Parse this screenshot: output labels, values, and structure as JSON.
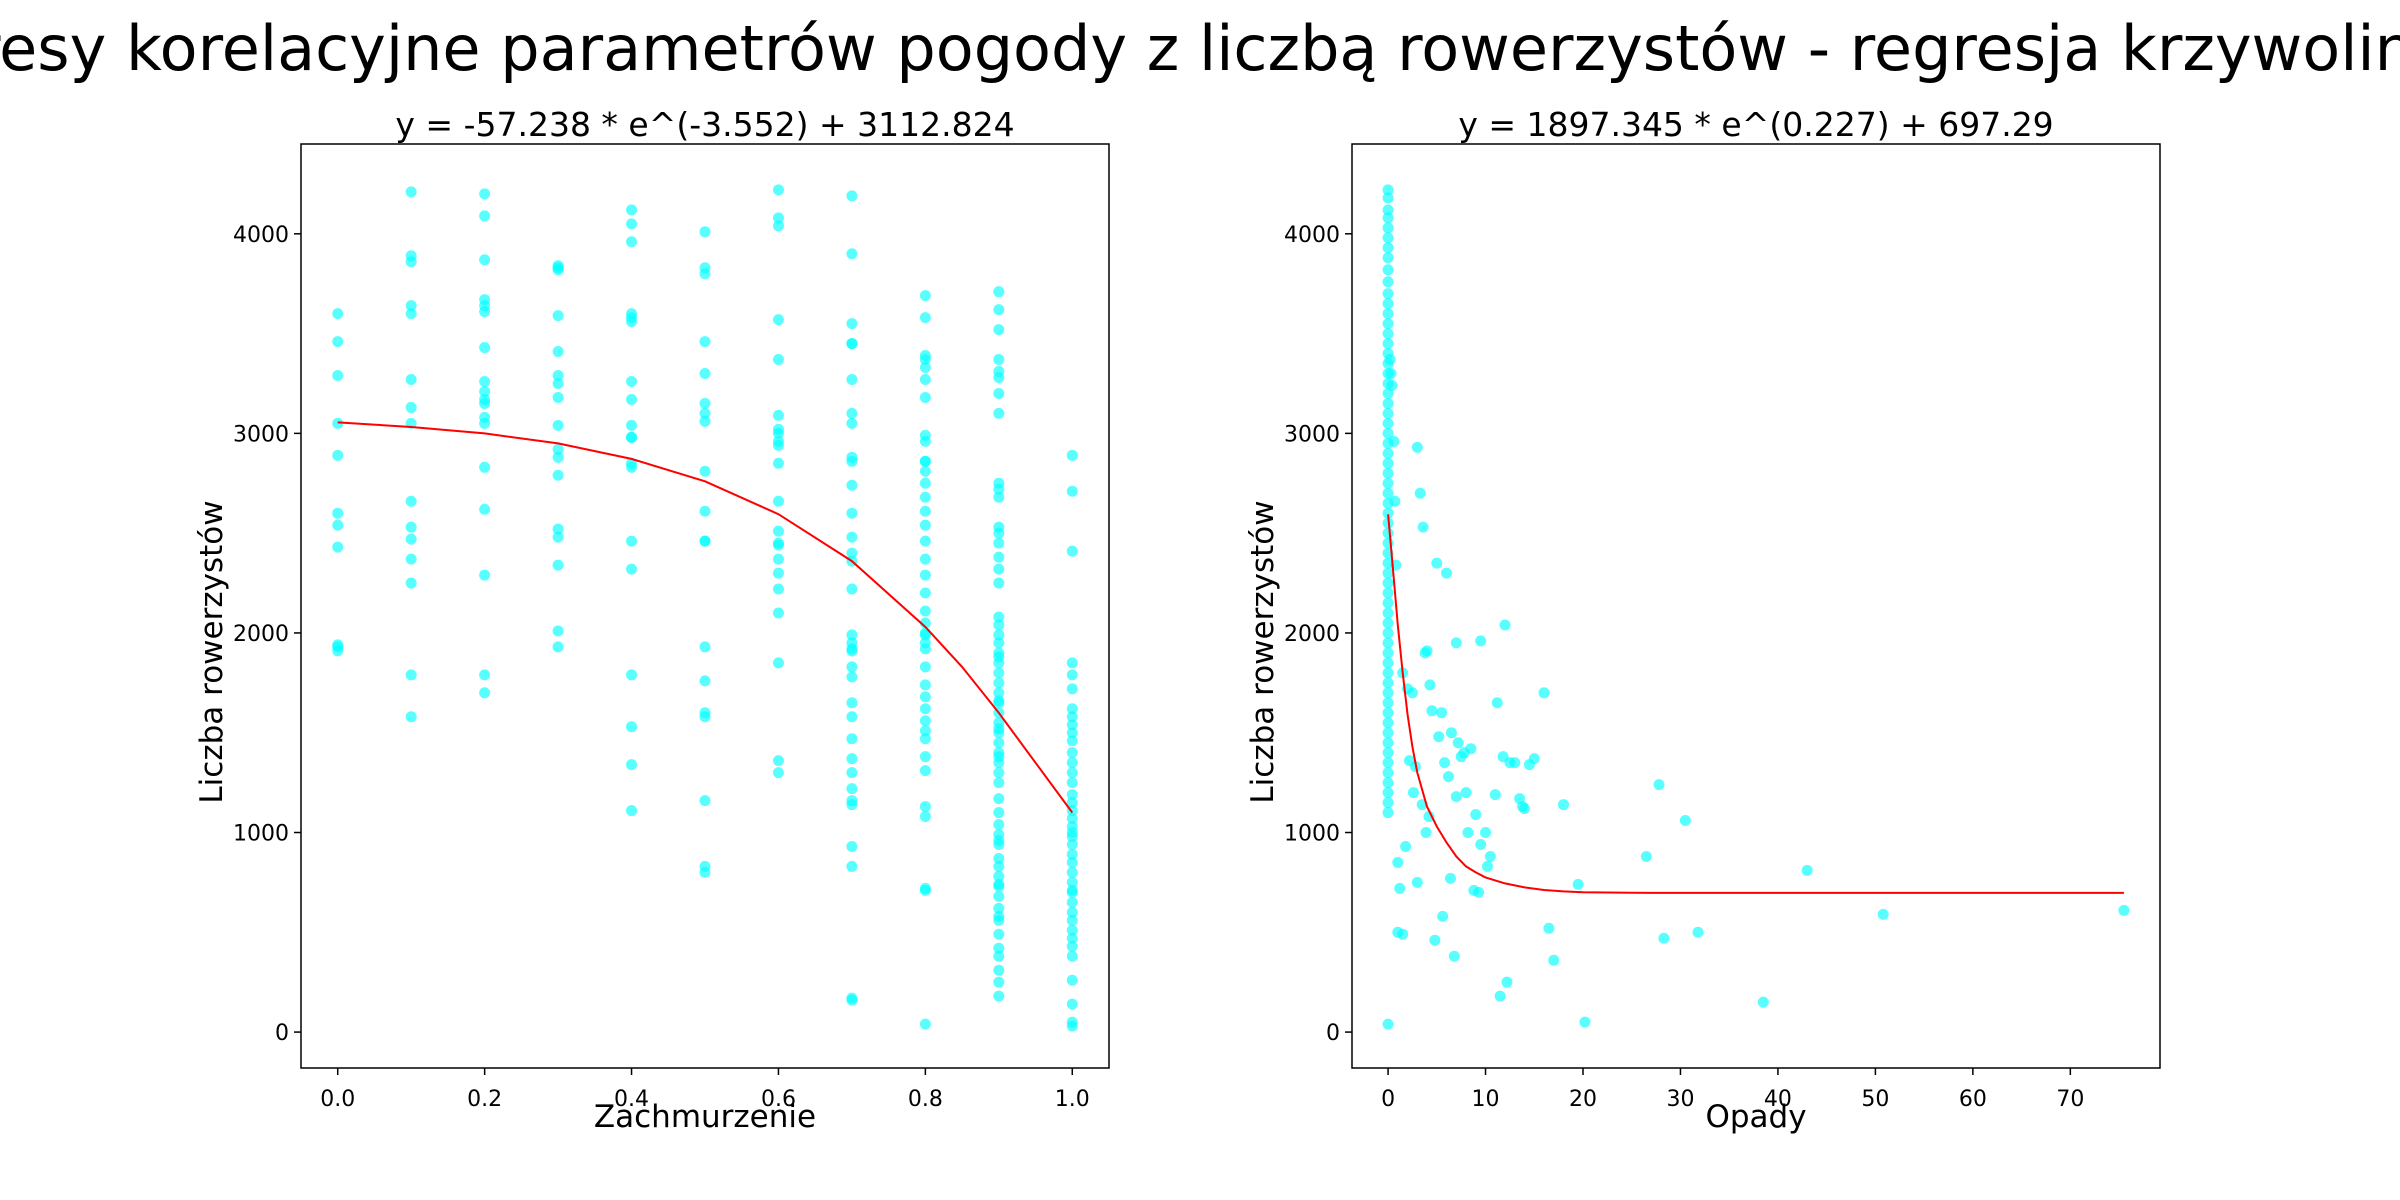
{
  "figure": {
    "suptitle": "Wykresy korelacyjne parametrów pogody z liczbą rowerzystów - regresja krzywoliniowa"
  },
  "colors": {
    "points": "#00ffff",
    "curve": "#ff0000",
    "axes": "#000000"
  },
  "chart_data": [
    {
      "type": "scatter",
      "title": "y = -57.238 * e^(-3.552) + 3112.824",
      "xlabel": "Zachmurzenie",
      "ylabel": "Liczba rowerzystów",
      "xlim": [
        -0.05,
        1.05
      ],
      "ylim": [
        -180,
        4450
      ],
      "xticks": [
        0.0,
        0.2,
        0.4,
        0.6,
        0.8,
        1.0
      ],
      "xtick_labels": [
        "0.0",
        "0.2",
        "0.4",
        "0.6",
        "0.8",
        "1.0"
      ],
      "yticks": [
        0,
        1000,
        2000,
        3000,
        4000
      ],
      "ytick_labels": [
        "0",
        "1000",
        "2000",
        "3000",
        "4000"
      ],
      "series": [
        {
          "kind": "points",
          "x": [
            0.0,
            0.0,
            0.0,
            0.0,
            0.0,
            0.0,
            0.0,
            0.0,
            0.0,
            0.0,
            0.0,
            0.1,
            0.1,
            0.1,
            0.1,
            0.1,
            0.1,
            0.1,
            0.1,
            0.1,
            0.1,
            0.1,
            0.1,
            0.1,
            0.1,
            0.1,
            0.2,
            0.2,
            0.2,
            0.2,
            0.2,
            0.2,
            0.2,
            0.2,
            0.2,
            0.2,
            0.2,
            0.2,
            0.2,
            0.2,
            0.2,
            0.2,
            0.2,
            0.2,
            0.3,
            0.3,
            0.3,
            0.3,
            0.3,
            0.3,
            0.3,
            0.3,
            0.3,
            0.3,
            0.3,
            0.3,
            0.3,
            0.3,
            0.3,
            0.3,
            0.3,
            0.4,
            0.4,
            0.4,
            0.4,
            0.4,
            0.4,
            0.4,
            0.4,
            0.4,
            0.4,
            0.4,
            0.4,
            0.4,
            0.4,
            0.4,
            0.4,
            0.4,
            0.4,
            0.4,
            0.5,
            0.5,
            0.5,
            0.5,
            0.5,
            0.5,
            0.5,
            0.5,
            0.5,
            0.5,
            0.5,
            0.5,
            0.5,
            0.5,
            0.5,
            0.5,
            0.5,
            0.5,
            0.5,
            0.6,
            0.6,
            0.6,
            0.6,
            0.6,
            0.6,
            0.6,
            0.6,
            0.6,
            0.6,
            0.6,
            0.6,
            0.6,
            0.6,
            0.6,
            0.6,
            0.6,
            0.6,
            0.6,
            0.6,
            0.6,
            0.6,
            0.7,
            0.7,
            0.7,
            0.7,
            0.7,
            0.7,
            0.7,
            0.7,
            0.7,
            0.7,
            0.7,
            0.7,
            0.7,
            0.7,
            0.7,
            0.7,
            0.7,
            0.7,
            0.7,
            0.7,
            0.7,
            0.7,
            0.7,
            0.7,
            0.7,
            0.7,
            0.7,
            0.7,
            0.7,
            0.7,
            0.7,
            0.7,
            0.7,
            0.7,
            0.8,
            0.8,
            0.8,
            0.8,
            0.8,
            0.8,
            0.8,
            0.8,
            0.8,
            0.8,
            0.8,
            0.8,
            0.8,
            0.8,
            0.8,
            0.8,
            0.8,
            0.8,
            0.8,
            0.8,
            0.8,
            0.8,
            0.8,
            0.8,
            0.8,
            0.8,
            0.8,
            0.8,
            0.8,
            0.8,
            0.8,
            0.8,
            0.8,
            0.8,
            0.8,
            0.8,
            0.8,
            0.8,
            0.8,
            0.8,
            0.9,
            0.9,
            0.9,
            0.9,
            0.9,
            0.9,
            0.9,
            0.9,
            0.9,
            0.9,
            0.9,
            0.9,
            0.9,
            0.9,
            0.9,
            0.9,
            0.9,
            0.9,
            0.9,
            0.9,
            0.9,
            0.9,
            0.9,
            0.9,
            0.9,
            0.9,
            0.9,
            0.9,
            0.9,
            0.9,
            0.9,
            0.9,
            0.9,
            0.9,
            0.9,
            0.9,
            0.9,
            0.9,
            0.9,
            0.9,
            0.9,
            0.9,
            0.9,
            0.9,
            0.9,
            0.9,
            0.9,
            0.9,
            0.9,
            0.9,
            0.9,
            0.9,
            0.9,
            0.9,
            0.9,
            0.9,
            0.9,
            0.9,
            0.9,
            0.9,
            1.0,
            1.0,
            1.0,
            1.0,
            1.0,
            1.0,
            1.0,
            1.0,
            1.0,
            1.0,
            1.0,
            1.0,
            1.0,
            1.0,
            1.0,
            1.0,
            1.0,
            1.0,
            1.0,
            1.0,
            1.0,
            1.0,
            1.0,
            1.0,
            1.0,
            1.0,
            1.0,
            1.0,
            1.0,
            1.0,
            1.0,
            1.0,
            1.0,
            1.0,
            1.0,
            1.0,
            1.0,
            1.0,
            1.0,
            1.0
          ],
          "y": [
            3600,
            3460,
            3290,
            3050,
            2890,
            2600,
            2540,
            2430,
            1940,
            1930,
            1910,
            4210,
            3890,
            3860,
            3640,
            3600,
            3270,
            3130,
            3050,
            2660,
            2530,
            2470,
            2370,
            2250,
            1790,
            1580,
            4200,
            4090,
            3870,
            3670,
            3640,
            3610,
            3430,
            3260,
            3210,
            3170,
            3150,
            3080,
            2830,
            2620,
            2290,
            1790,
            1700,
            3050,
            3840,
            3820,
            3590,
            3410,
            3290,
            3250,
            3180,
            3040,
            2920,
            2790,
            2520,
            2480,
            2340,
            2010,
            1930,
            3830,
            2880,
            4120,
            4050,
            3960,
            3600,
            3580,
            3560,
            3260,
            3170,
            3040,
            2980,
            2850,
            2830,
            2460,
            2320,
            1790,
            1530,
            1340,
            1110,
            2980,
            4010,
            3830,
            3800,
            3460,
            3300,
            3150,
            3100,
            3060,
            2810,
            2610,
            2460,
            1930,
            1760,
            1600,
            1580,
            1160,
            830,
            800,
            2460,
            4220,
            4080,
            4040,
            3570,
            3370,
            3090,
            3020,
            2940,
            2850,
            2660,
            2510,
            2440,
            2370,
            2300,
            2220,
            2100,
            1850,
            1360,
            1300,
            3000,
            2450,
            2960,
            4190,
            3900,
            3550,
            3450,
            3450,
            3270,
            3100,
            3050,
            2880,
            2860,
            2740,
            2600,
            2480,
            2400,
            2360,
            2220,
            1990,
            1950,
            1920,
            1830,
            1780,
            1650,
            1580,
            1470,
            1370,
            1300,
            1220,
            1160,
            1140,
            930,
            830,
            170,
            160,
            1910,
            3690,
            3580,
            3390,
            3370,
            3330,
            3270,
            3180,
            2990,
            2960,
            2860,
            2810,
            2750,
            2680,
            2610,
            2540,
            2460,
            2370,
            2290,
            2200,
            2110,
            2050,
            1990,
            1920,
            1830,
            1740,
            1680,
            1620,
            1560,
            1510,
            1470,
            1380,
            1310,
            1130,
            1080,
            720,
            710,
            40,
            2860,
            2000,
            1950,
            3710,
            3620,
            3520,
            3370,
            3310,
            3280,
            3200,
            3100,
            2750,
            2720,
            2680,
            2530,
            2500,
            2450,
            2380,
            2320,
            2250,
            2080,
            2040,
            1990,
            1950,
            1900,
            1850,
            1800,
            1750,
            1700,
            1650,
            1600,
            1550,
            1500,
            1450,
            1400,
            1350,
            1300,
            1250,
            1170,
            1100,
            1040,
            990,
            940,
            870,
            830,
            780,
            730,
            680,
            620,
            580,
            490,
            420,
            380,
            310,
            250,
            180,
            1880,
            1660,
            1520,
            1380,
            960,
            740,
            560,
            2890,
            2710,
            2410,
            1850,
            1790,
            1720,
            1620,
            1580,
            1540,
            1460,
            1400,
            1350,
            1300,
            1250,
            1190,
            1150,
            1110,
            1070,
            1030,
            980,
            940,
            890,
            850,
            800,
            750,
            710,
            650,
            600,
            560,
            510,
            470,
            430,
            380,
            260,
            140,
            50,
            30,
            1500,
            1000,
            700
          ]
        },
        {
          "kind": "curve",
          "x": [
            0.0,
            0.1,
            0.2,
            0.3,
            0.4,
            0.5,
            0.6,
            0.7,
            0.8,
            0.85,
            0.9,
            0.95,
            1.0
          ],
          "y": [
            3055,
            3032,
            3000,
            2950,
            2872,
            2760,
            2595,
            2360,
            2030,
            1830,
            1600,
            1350,
            1100
          ]
        }
      ]
    },
    {
      "type": "scatter",
      "title": "y = 1897.345 * e^(0.227) + 697.29",
      "xlabel": "Opady",
      "ylabel": "Liczba rowerzystów",
      "xlim": [
        -3.7,
        79.2
      ],
      "ylim": [
        -180,
        4450
      ],
      "xticks": [
        0,
        10,
        20,
        30,
        40,
        50,
        60,
        70
      ],
      "xtick_labels": [
        "0",
        "10",
        "20",
        "30",
        "40",
        "50",
        "60",
        "70"
      ],
      "yticks": [
        0,
        1000,
        2000,
        3000,
        4000
      ],
      "ytick_labels": [
        "0",
        "1000",
        "2000",
        "3000",
        "4000"
      ],
      "series": [
        {
          "kind": "points",
          "x": [
            0,
            0,
            0,
            0,
            0,
            0,
            0,
            0,
            0,
            0,
            0,
            0,
            0,
            0,
            0,
            0,
            0,
            0,
            0,
            0,
            0,
            0,
            0,
            0,
            0,
            0,
            0,
            0,
            0,
            0,
            0,
            0,
            0,
            0,
            0,
            0,
            0,
            0,
            0,
            0,
            0,
            0,
            0,
            0,
            0,
            0,
            0,
            0,
            0,
            0,
            0,
            0,
            0,
            0,
            0,
            0,
            0,
            0,
            0,
            0,
            0,
            0,
            0,
            0,
            0.2,
            0.3,
            0.4,
            0.6,
            0.7,
            0.8,
            1.0,
            1.2,
            1.0,
            1.5,
            1.8,
            2.0,
            2.5,
            3.0,
            3.3,
            3.6,
            3.8,
            4.0,
            4.3,
            4.5,
            5.0,
            5.5,
            5.8,
            6.0,
            6.5,
            7.0,
            7.2,
            7.5,
            7.8,
            8.0,
            8.5,
            9.0,
            9.3,
            9.5,
            10.0,
            10.5,
            11.0,
            11.2,
            11.8,
            12.0,
            12.5,
            13.0,
            13.5,
            14.0,
            14.5,
            15.0,
            16.0,
            16.5,
            17.0,
            2.2,
            2.8,
            3.5,
            4.2,
            5.2,
            6.2,
            7.0,
            8.2,
            9.5,
            10.2,
            12.2,
            13.8,
            18.0,
            19.5,
            20.2,
            26.5,
            27.8,
            28.3,
            30.5,
            31.8,
            38.5,
            43.0,
            50.8,
            75.5,
            3.0,
            4.8,
            6.8,
            1.5,
            2.6,
            3.9,
            5.6,
            6.4,
            8.8,
            11.5
          ],
          "y": [
            4220,
            4180,
            4120,
            4080,
            4030,
            3980,
            3930,
            3880,
            3820,
            3760,
            3700,
            3650,
            3600,
            3550,
            3500,
            3450,
            3400,
            3350,
            3300,
            3250,
            3200,
            3150,
            3100,
            3050,
            3000,
            2950,
            2900,
            2850,
            2800,
            2750,
            2700,
            2650,
            2600,
            2550,
            2500,
            2450,
            2400,
            2350,
            2300,
            2250,
            2200,
            2150,
            2100,
            2050,
            2000,
            1950,
            1900,
            1850,
            1800,
            1750,
            1700,
            1650,
            1600,
            1550,
            1500,
            1450,
            1400,
            1350,
            1300,
            1250,
            1200,
            1150,
            1100,
            40,
            3370,
            3300,
            3240,
            2960,
            2660,
            2340,
            850,
            720,
            500,
            490,
            930,
            1720,
            1700,
            2930,
            2700,
            2530,
            1900,
            1910,
            1740,
            1610,
            2350,
            1600,
            1350,
            2300,
            1500,
            1950,
            1450,
            1380,
            1400,
            1200,
            1420,
            1090,
            700,
            1960,
            1000,
            880,
            1190,
            1650,
            1380,
            2040,
            1350,
            1350,
            1170,
            1120,
            1340,
            1370,
            1700,
            520,
            360,
            1360,
            1330,
            1140,
            1080,
            1480,
            1280,
            1180,
            1000,
            940,
            830,
            250,
            1130,
            1140,
            740,
            50,
            880,
            1240,
            470,
            1060,
            500,
            150,
            810,
            590,
            610,
            750,
            460,
            380,
            1800,
            1200,
            1000,
            580,
            770,
            710,
            180
          ]
        },
        {
          "kind": "curve",
          "x": [
            0,
            0.5,
            1,
            1.5,
            2,
            2.5,
            3,
            4,
            5,
            6,
            7,
            8,
            9,
            10,
            12,
            14,
            16,
            18,
            20,
            25,
            30,
            40,
            50,
            60,
            75.5
          ],
          "y": [
            2594,
            2324,
            2040,
            1800,
            1590,
            1430,
            1300,
            1130,
            1030,
            950,
            880,
            830,
            800,
            775,
            745,
            725,
            712,
            705,
            701,
            698,
            697.5,
            697.3,
            697.3,
            697.3,
            697.3
          ]
        }
      ]
    }
  ]
}
